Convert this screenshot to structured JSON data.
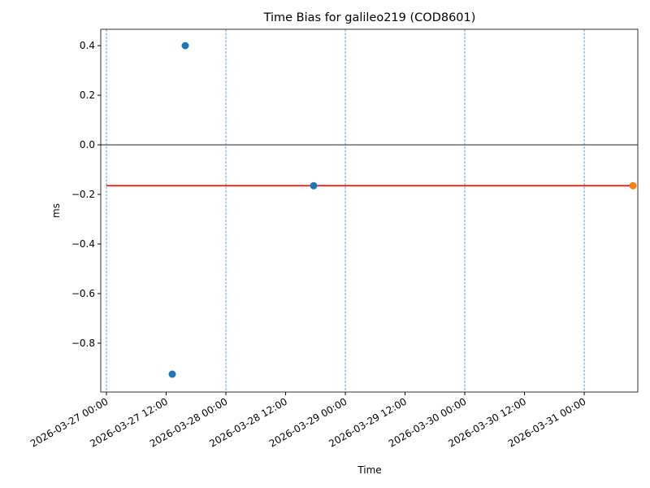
{
  "chart_data": {
    "type": "scatter",
    "title": "Time Bias for galileo219 (COD8601)",
    "x_label": "Time",
    "y_label": "ms",
    "xlim": [
      "2026-03-26 22:51",
      "2026-03-31 10:46"
    ],
    "ylim": [
      -0.997,
      0.466
    ],
    "xticks": [
      "2026-03-27 00:00",
      "2026-03-27 12:00",
      "2026-03-28 00:00",
      "2026-03-28 12:00",
      "2026-03-29 00:00",
      "2026-03-29 12:00",
      "2026-03-30 00:00",
      "2026-03-30 12:00",
      "2026-03-31 00:00"
    ],
    "yticks": [
      {
        "value": -0.8,
        "label": "−0.8"
      },
      {
        "value": -0.6,
        "label": "−0.6"
      },
      {
        "value": -0.4,
        "label": "−0.4"
      },
      {
        "value": -0.2,
        "label": "−0.2"
      },
      {
        "value": 0,
        "label": "0.0"
      },
      {
        "value": 0.2,
        "label": "0.2"
      },
      {
        "value": 0.4,
        "label": "0.4"
      }
    ],
    "zero_line": 0,
    "vlines": [
      "2026-03-27 00:00",
      "2026-03-28 00:00",
      "2026-03-29 00:00",
      "2026-03-30 00:00",
      "2026-03-31 00:00"
    ],
    "vline_color": "#1f77b4",
    "series": [
      {
        "kind": "points",
        "color": "#1f77b4",
        "x": [
          "2026-03-27 13:13",
          "2026-03-27 15:50",
          "2026-03-28 17:38"
        ],
        "values": [
          -0.925,
          0.4,
          -0.165
        ]
      },
      {
        "kind": "points",
        "color": "#ff7f0e",
        "x": [
          "2026-03-31 09:48"
        ],
        "values": [
          -0.165
        ]
      },
      {
        "kind": "line",
        "color": "#ff0000",
        "x": [
          "2026-03-27 00:00",
          "2026-03-31 09:48"
        ],
        "values": [
          -0.165,
          -0.165
        ]
      }
    ]
  }
}
